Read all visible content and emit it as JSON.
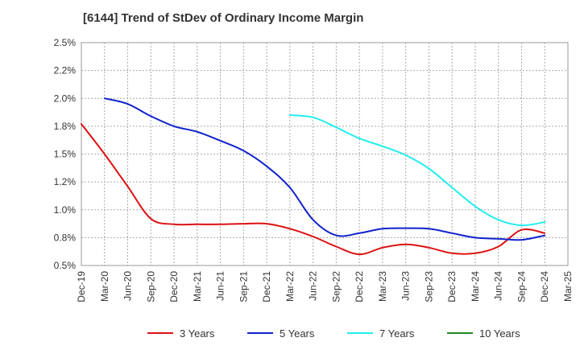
{
  "chart_data": {
    "type": "line",
    "title": "[6144]  Trend of StDev of Ordinary Income Margin",
    "xlabel": "",
    "ylabel": "",
    "x_ticks": [
      "Dec-19",
      "Mar-20",
      "Jun-20",
      "Sep-20",
      "Dec-20",
      "Mar-21",
      "Jun-21",
      "Sep-21",
      "Dec-21",
      "Mar-22",
      "Jun-22",
      "Sep-22",
      "Dec-22",
      "Mar-23",
      "Jun-23",
      "Sep-23",
      "Dec-23",
      "Mar-24",
      "Jun-24",
      "Sep-24",
      "Dec-24",
      "Mar-25"
    ],
    "y_ticks": [
      "0.5%",
      "0.8%",
      "1.0%",
      "1.2%",
      "1.5%",
      "1.8%",
      "2.0%",
      "2.2%",
      "2.5%"
    ],
    "ylim": [
      0.5,
      2.5
    ],
    "grid": true,
    "legend_position": "bottom",
    "series": [
      {
        "name": "3 Years",
        "color": "#dd1111",
        "x": [
          "Dec-19",
          "Mar-20",
          "Jun-20",
          "Sep-20",
          "Dec-20",
          "Mar-21",
          "Jun-21",
          "Sep-21",
          "Dec-21",
          "Mar-22",
          "Jun-22",
          "Sep-22",
          "Dec-22",
          "Mar-23",
          "Jun-23",
          "Sep-23",
          "Dec-23",
          "Mar-24",
          "Jun-24",
          "Sep-24",
          "Dec-24"
        ],
        "values": [
          1.77,
          1.5,
          1.21,
          0.92,
          0.87,
          0.87,
          0.87,
          0.875,
          0.875,
          0.83,
          0.76,
          0.67,
          0.6,
          0.66,
          0.69,
          0.66,
          0.61,
          0.61,
          0.67,
          0.82,
          0.79
        ]
      },
      {
        "name": "5 Years",
        "color": "#1122cc",
        "x": [
          "Mar-20",
          "Jun-20",
          "Sep-20",
          "Dec-20",
          "Mar-21",
          "Jun-21",
          "Sep-21",
          "Dec-21",
          "Mar-22",
          "Jun-22",
          "Sep-22",
          "Dec-22",
          "Mar-23",
          "Jun-23",
          "Sep-23",
          "Dec-23",
          "Mar-24",
          "Jun-24",
          "Sep-24",
          "Dec-24"
        ],
        "values": [
          2.0,
          1.95,
          1.84,
          1.75,
          1.7,
          1.62,
          1.53,
          1.39,
          1.2,
          0.91,
          0.77,
          0.79,
          0.83,
          0.835,
          0.83,
          0.79,
          0.75,
          0.74,
          0.73,
          0.77
        ]
      },
      {
        "name": "7 Years",
        "color": "#22eeee",
        "x": [
          "Mar-22",
          "Jun-22",
          "Sep-22",
          "Dec-22",
          "Mar-23",
          "Jun-23",
          "Sep-23",
          "Dec-23",
          "Mar-24",
          "Jun-24",
          "Sep-24",
          "Dec-24"
        ],
        "values": [
          1.85,
          1.83,
          1.74,
          1.64,
          1.57,
          1.49,
          1.37,
          1.2,
          1.03,
          0.91,
          0.86,
          0.89
        ]
      },
      {
        "name": "10 Years",
        "color": "#228822",
        "x": [],
        "values": []
      }
    ]
  }
}
